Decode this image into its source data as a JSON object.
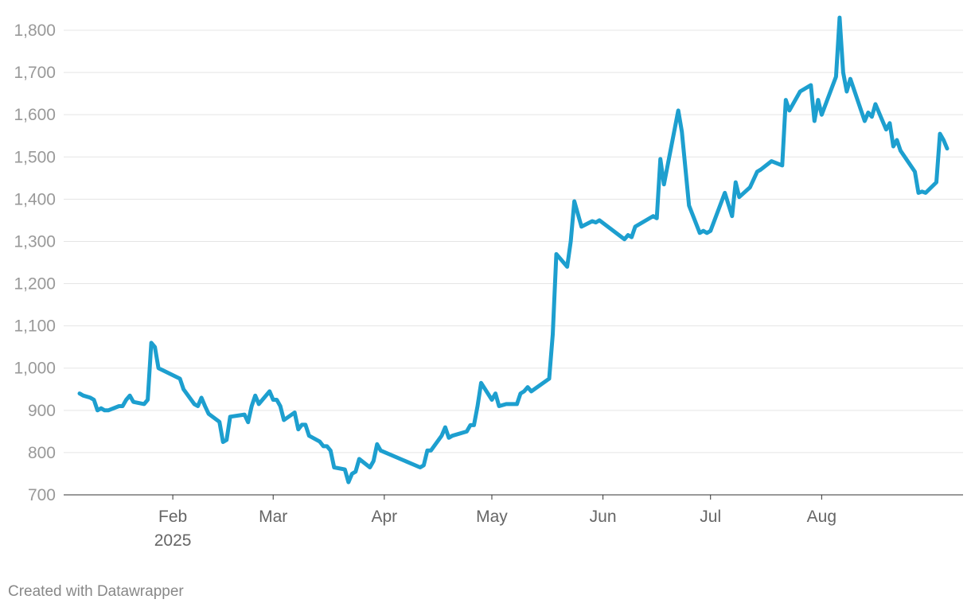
{
  "credit": "Created with Datawrapper",
  "colors": {
    "line": "#1d9fcf",
    "grid": "#e5e5e5",
    "tick_text": "#999999",
    "x_text": "#666666"
  },
  "chart_data": {
    "type": "line",
    "title": "",
    "xlabel": "",
    "ylabel": "",
    "ylim": [
      700,
      1800
    ],
    "yticks": [
      700,
      800,
      900,
      1000,
      1100,
      1200,
      1300,
      1400,
      1500,
      1600,
      1700,
      1800
    ],
    "ytick_labels": [
      "700",
      "800",
      "900",
      "1,000",
      "1,100",
      "1,200",
      "1,300",
      "1,400",
      "1,500",
      "1,600",
      "1,700",
      "1,800"
    ],
    "xlim": [
      "2025-01-02",
      "2025-08-29"
    ],
    "xticks": [
      {
        "date": "2025-02-01",
        "label": "Feb",
        "sublabel": "2025"
      },
      {
        "date": "2025-03-01",
        "label": "Mar",
        "sublabel": ""
      },
      {
        "date": "2025-04-01",
        "label": "Apr",
        "sublabel": ""
      },
      {
        "date": "2025-05-01",
        "label": "May",
        "sublabel": ""
      },
      {
        "date": "2025-06-01",
        "label": "Jun",
        "sublabel": ""
      },
      {
        "date": "2025-07-01",
        "label": "Jul",
        "sublabel": ""
      },
      {
        "date": "2025-08-01",
        "label": "Aug",
        "sublabel": ""
      }
    ],
    "grid": true,
    "legend": "none",
    "series": [
      {
        "points": [
          [
            "2025-01-06",
            940
          ],
          [
            "2025-01-07",
            935
          ],
          [
            "2025-01-09",
            930
          ],
          [
            "2025-01-10",
            925
          ],
          [
            "2025-01-11",
            900
          ],
          [
            "2025-01-12",
            905
          ],
          [
            "2025-01-13",
            900
          ],
          [
            "2025-01-14",
            900
          ],
          [
            "2025-01-17",
            910
          ],
          [
            "2025-01-18",
            910
          ],
          [
            "2025-01-19",
            925
          ],
          [
            "2025-01-20",
            935
          ],
          [
            "2025-01-21",
            920
          ],
          [
            "2025-01-24",
            915
          ],
          [
            "2025-01-25",
            925
          ],
          [
            "2025-01-26",
            1060
          ],
          [
            "2025-01-27",
            1050
          ],
          [
            "2025-01-28",
            1000
          ],
          [
            "2025-02-03",
            975
          ],
          [
            "2025-02-04",
            950
          ],
          [
            "2025-02-07",
            915
          ],
          [
            "2025-02-08",
            910
          ],
          [
            "2025-02-09",
            930
          ],
          [
            "2025-02-10",
            910
          ],
          [
            "2025-02-11",
            892
          ],
          [
            "2025-02-14",
            873
          ],
          [
            "2025-02-15",
            825
          ],
          [
            "2025-02-16",
            830
          ],
          [
            "2025-02-17",
            885
          ],
          [
            "2025-02-21",
            890
          ],
          [
            "2025-02-22",
            872
          ],
          [
            "2025-02-23",
            910
          ],
          [
            "2025-02-24",
            935
          ],
          [
            "2025-02-25",
            915
          ],
          [
            "2025-02-28",
            945
          ],
          [
            "2025-03-01",
            925
          ],
          [
            "2025-03-02",
            925
          ],
          [
            "2025-03-03",
            910
          ],
          [
            "2025-03-04",
            877
          ],
          [
            "2025-03-07",
            895
          ],
          [
            "2025-03-08",
            855
          ],
          [
            "2025-03-09",
            866
          ],
          [
            "2025-03-10",
            866
          ],
          [
            "2025-03-11",
            840
          ],
          [
            "2025-03-14",
            826
          ],
          [
            "2025-03-15",
            815
          ],
          [
            "2025-03-16",
            815
          ],
          [
            "2025-03-17",
            805
          ],
          [
            "2025-03-18",
            765
          ],
          [
            "2025-03-21",
            760
          ],
          [
            "2025-03-22",
            730
          ],
          [
            "2025-03-23",
            750
          ],
          [
            "2025-03-24",
            755
          ],
          [
            "2025-03-25",
            785
          ],
          [
            "2025-03-28",
            765
          ],
          [
            "2025-03-29",
            780
          ],
          [
            "2025-03-30",
            820
          ],
          [
            "2025-03-31",
            805
          ],
          [
            "2025-04-11",
            765
          ],
          [
            "2025-04-12",
            770
          ],
          [
            "2025-04-13",
            805
          ],
          [
            "2025-04-14",
            805
          ],
          [
            "2025-04-17",
            840
          ],
          [
            "2025-04-18",
            860
          ],
          [
            "2025-04-19",
            835
          ],
          [
            "2025-04-20",
            840
          ],
          [
            "2025-04-24",
            850
          ],
          [
            "2025-04-25",
            865
          ],
          [
            "2025-04-26",
            865
          ],
          [
            "2025-04-27",
            910
          ],
          [
            "2025-04-28",
            965
          ],
          [
            "2025-05-01",
            925
          ],
          [
            "2025-05-02",
            940
          ],
          [
            "2025-05-03",
            910
          ],
          [
            "2025-05-05",
            915
          ],
          [
            "2025-05-07",
            915
          ],
          [
            "2025-05-08",
            915
          ],
          [
            "2025-05-09",
            940
          ],
          [
            "2025-05-10",
            945
          ],
          [
            "2025-05-11",
            955
          ],
          [
            "2025-05-12",
            945
          ],
          [
            "2025-05-17",
            975
          ],
          [
            "2025-05-18",
            1080
          ],
          [
            "2025-05-19",
            1270
          ],
          [
            "2025-05-22",
            1240
          ],
          [
            "2025-05-23",
            1300
          ],
          [
            "2025-05-24",
            1395
          ],
          [
            "2025-05-26",
            1335
          ],
          [
            "2025-05-29",
            1348
          ],
          [
            "2025-05-30",
            1345
          ],
          [
            "2025-05-31",
            1350
          ],
          [
            "2025-06-07",
            1305
          ],
          [
            "2025-06-08",
            1315
          ],
          [
            "2025-06-09",
            1310
          ],
          [
            "2025-06-10",
            1335
          ],
          [
            "2025-06-15",
            1360
          ],
          [
            "2025-06-16",
            1355
          ],
          [
            "2025-06-17",
            1495
          ],
          [
            "2025-06-18",
            1435
          ],
          [
            "2025-06-22",
            1610
          ],
          [
            "2025-06-23",
            1560
          ],
          [
            "2025-06-25",
            1385
          ],
          [
            "2025-06-28",
            1320
          ],
          [
            "2025-06-29",
            1325
          ],
          [
            "2025-06-30",
            1320
          ],
          [
            "2025-07-01",
            1325
          ],
          [
            "2025-07-05",
            1415
          ],
          [
            "2025-07-07",
            1360
          ],
          [
            "2025-07-08",
            1440
          ],
          [
            "2025-07-09",
            1405
          ],
          [
            "2025-07-12",
            1428
          ],
          [
            "2025-07-14",
            1465
          ],
          [
            "2025-07-15",
            1470
          ],
          [
            "2025-07-18",
            1490
          ],
          [
            "2025-07-21",
            1480
          ],
          [
            "2025-07-22",
            1635
          ],
          [
            "2025-07-23",
            1610
          ],
          [
            "2025-07-26",
            1655
          ],
          [
            "2025-07-29",
            1670
          ],
          [
            "2025-07-30",
            1585
          ],
          [
            "2025-07-31",
            1635
          ],
          [
            "2025-08-01",
            1600
          ],
          [
            "2025-08-05",
            1690
          ],
          [
            "2025-08-06",
            1830
          ],
          [
            "2025-08-07",
            1700
          ],
          [
            "2025-08-08",
            1655
          ],
          [
            "2025-08-09",
            1685
          ],
          [
            "2025-08-13",
            1585
          ],
          [
            "2025-08-14",
            1605
          ],
          [
            "2025-08-15",
            1595
          ],
          [
            "2025-08-16",
            1625
          ],
          [
            "2025-08-19",
            1565
          ],
          [
            "2025-08-20",
            1580
          ],
          [
            "2025-08-21",
            1525
          ],
          [
            "2025-08-22",
            1540
          ],
          [
            "2025-08-23",
            1515
          ],
          [
            "2025-08-27",
            1465
          ],
          [
            "2025-08-28",
            1415
          ],
          [
            "2025-08-29",
            1418
          ],
          [
            "2025-08-30",
            1415
          ],
          [
            "2025-09-02",
            1440
          ],
          [
            "2025-09-03",
            1555
          ],
          [
            "2025-09-04",
            1540
          ],
          [
            "2025-09-05",
            1520
          ]
        ]
      }
    ]
  }
}
